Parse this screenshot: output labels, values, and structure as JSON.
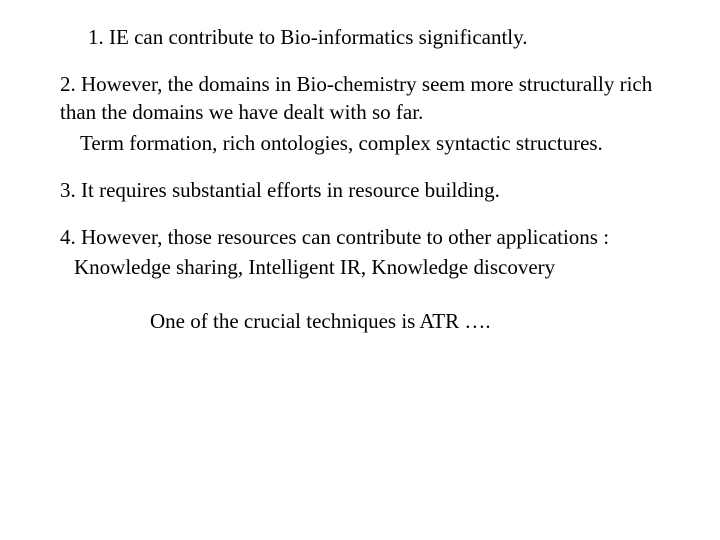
{
  "slide": {
    "point1": "1.  IE can contribute to Bio-informatics significantly.",
    "point2_main": "2. However, the domains in Bio-chemistry seem more structurally rich than the domains we have dealt with so far.",
    "point2_sub": "Term formation, rich ontologies, complex syntactic structures.",
    "point3": "3. It requires substantial efforts in resource building.",
    "point4_main": "4. However, those resources can contribute to other applications :",
    "point4_sub": "Knowledge sharing, Intelligent IR, Knowledge discovery",
    "footer": "One of the crucial techniques is ATR …."
  },
  "style": {
    "background_color": "#ffffff",
    "text_color": "#000000",
    "font_family": "Times New Roman",
    "font_size": 21,
    "line_height": 1.3
  }
}
